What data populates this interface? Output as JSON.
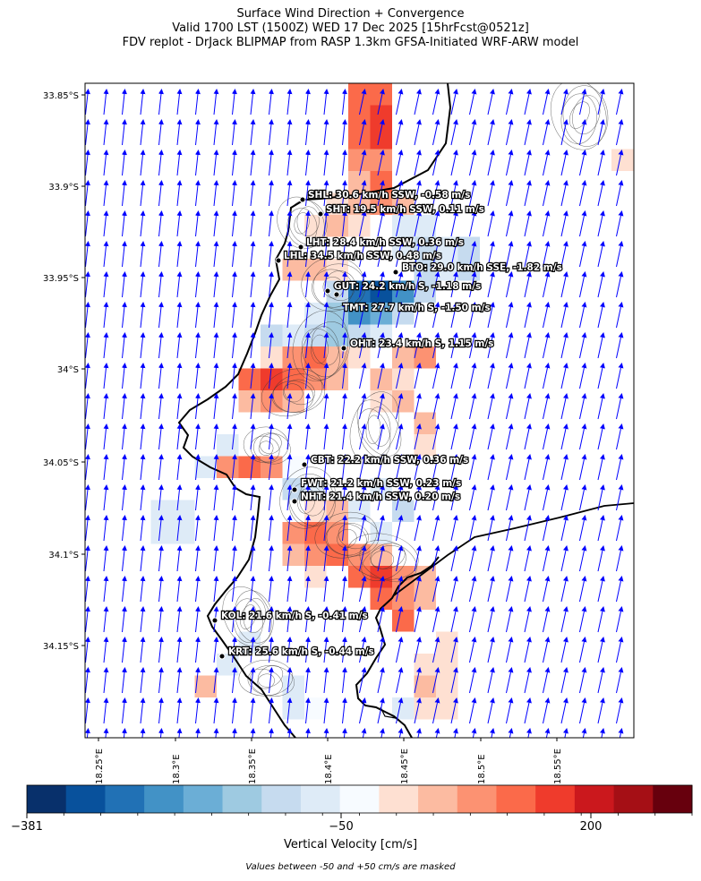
{
  "title": {
    "line1": "Surface Wind Direction + Convergence",
    "line2": "Valid 1700 LST (1500Z) WED 17 Dec 2025 [15hrFcst@0521z]",
    "line3": "FDV replot - DrJack BLIPMAP from RASP 1.3km GFSA-Initiated WRF-ARW model"
  },
  "map": {
    "lat_ticks": [
      "33.85°S",
      "33.9°S",
      "33.95°S",
      "34°S",
      "34.05°S",
      "34.1°S",
      "34.15°S"
    ],
    "lon_ticks": [
      "18.25°E",
      "18.3°E",
      "18.35°E",
      "18.4°E",
      "18.45°E",
      "18.5°E",
      "18.55°E"
    ],
    "arrow_color": "#0000ff",
    "stations": [
      {
        "label": "SHL: 30.6 km/h SSW, -0.58 m/s"
      },
      {
        "label": "SHT: 19.5 km/h SSW, 0.11 m/s"
      },
      {
        "label": "LHT: 28.4 km/h SSW, 0.36 m/s"
      },
      {
        "label": "LHL: 34.5 km/h SSW, 0.48 m/s"
      },
      {
        "label": "BTO: 29.0 km/h SSE, -1.82 m/s"
      },
      {
        "label": "GUT: 24.2 km/h S, -1.18 m/s"
      },
      {
        "label": "TMT: 27.7 km/h S, -1.50 m/s"
      },
      {
        "label": "OHT: 23.4 km/h S, 1.15 m/s"
      },
      {
        "label": "CBT: 22.2 km/h SSW, 0.36 m/s"
      },
      {
        "label": "FWT: 21.2 km/h SSW, 0.23 m/s"
      },
      {
        "label": "NHT: 21.4 km/h SSW, 0.20 m/s"
      },
      {
        "label": "KOL: 21.6 km/h S, -0.41 m/s"
      },
      {
        "label": "KRT: 25.6 km/h S, -0.44 m/s"
      }
    ]
  },
  "colorbar": {
    "colors": [
      "#08306b",
      "#08519c",
      "#2171b5",
      "#4292c6",
      "#6baed6",
      "#9ecae1",
      "#c6dbef",
      "#deebf7",
      "#f7fbff",
      "#fee0d2",
      "#fcbba1",
      "#fc9272",
      "#fb6a4a",
      "#ef3b2c",
      "#cb181d",
      "#a50f15",
      "#67000d"
    ],
    "tick_labels": [
      "−381",
      "−50",
      "200"
    ],
    "label": "Vertical Velocity [cm/s]"
  },
  "footnote": "Values between -50 and +50 cm/s are masked"
}
